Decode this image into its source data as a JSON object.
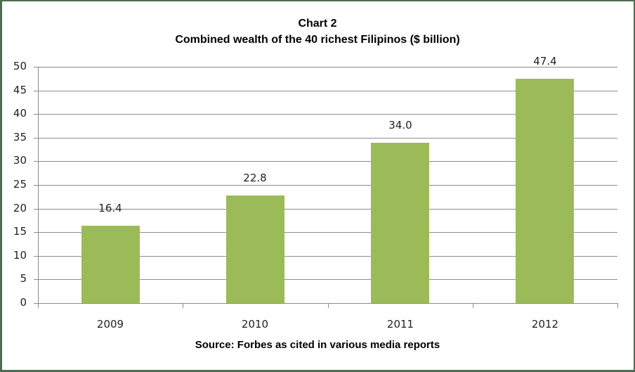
{
  "chart_data": {
    "type": "bar",
    "title": "Chart 2",
    "subtitle": "Combined wealth of the 40 richest Filipinos ($ billion)",
    "categories": [
      "2009",
      "2010",
      "2011",
      "2012"
    ],
    "values": [
      16.4,
      22.8,
      34.0,
      47.4
    ],
    "value_labels": [
      "16.4",
      "22.8",
      "34.0",
      "47.4"
    ],
    "xlabel": "",
    "ylabel": "",
    "ylim": [
      0,
      50
    ],
    "yticks": [
      "0",
      "5",
      "10",
      "15",
      "20",
      "25",
      "30",
      "35",
      "40",
      "45",
      "50"
    ],
    "grid": true,
    "legend": null,
    "bar_color": "#9bbb59",
    "source_note": "Source: Forbes as cited in various media reports"
  }
}
